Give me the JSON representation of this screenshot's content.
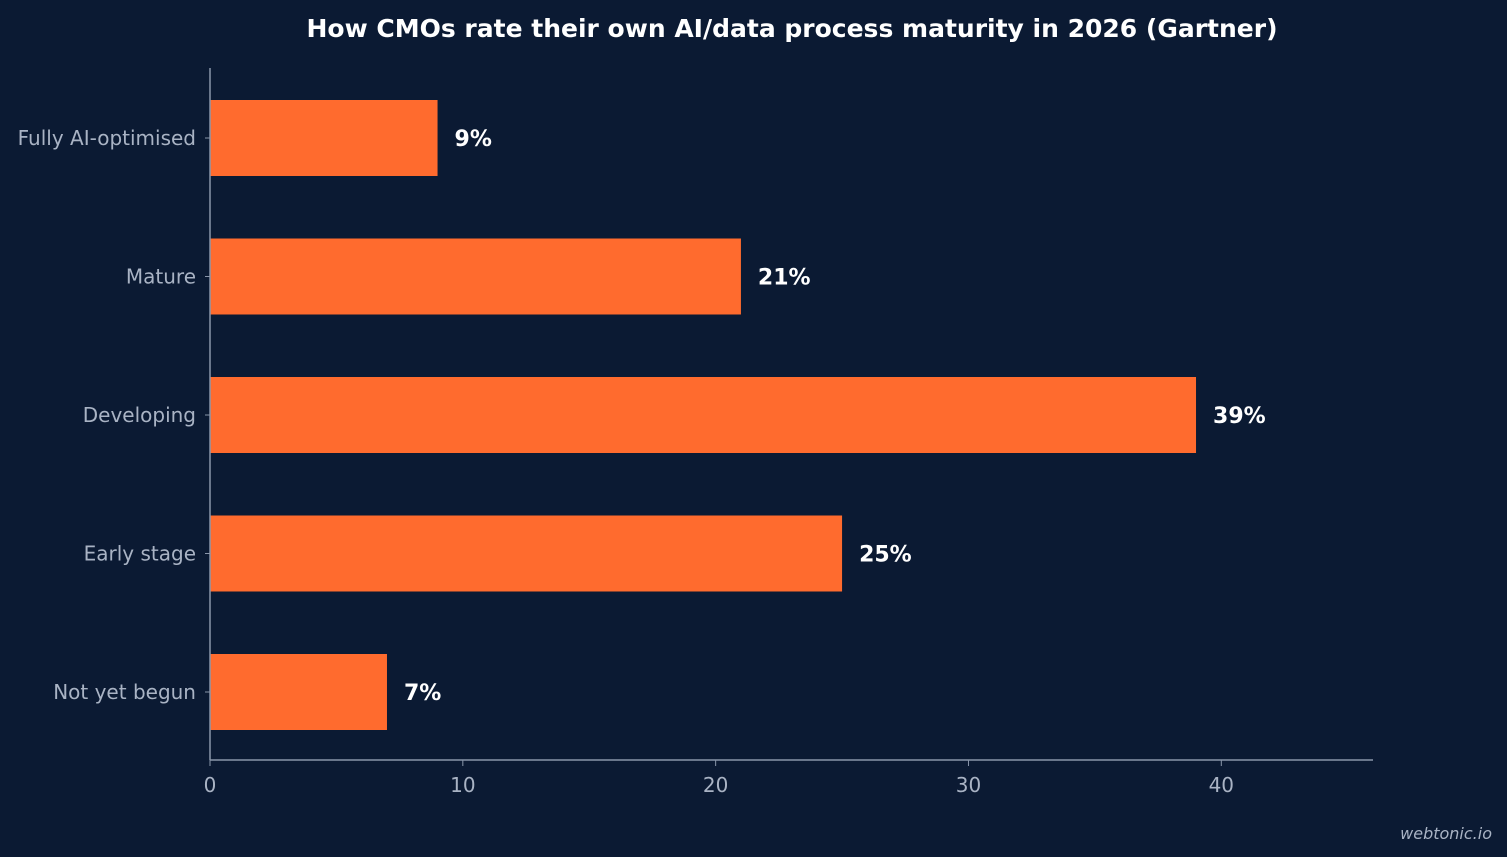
{
  "chart_data": {
    "type": "bar",
    "orientation": "horizontal",
    "title": "How CMOs rate their own AI/data process maturity in 2026 (Gartner)",
    "categories": [
      "Fully AI-optimised",
      "Mature",
      "Developing",
      "Early stage",
      "Not yet begun"
    ],
    "values": [
      9,
      21,
      39,
      25,
      7
    ],
    "value_labels": [
      "9%",
      "21%",
      "39%",
      "25%",
      "7%"
    ],
    "xlim": [
      0,
      46
    ],
    "xticks": [
      0,
      10,
      20,
      30,
      40
    ],
    "xtick_labels": [
      "0",
      "10",
      "20",
      "30",
      "40"
    ],
    "xlabel": "",
    "ylabel": "",
    "grid": false,
    "legend": "none",
    "colors": {
      "background": "#0b1a33",
      "bar": "#ff6b2e",
      "axis": "#8a96aa",
      "text_muted": "#a9b3c4",
      "text_strong": "#ffffff"
    }
  },
  "watermark": "webtonic.io"
}
